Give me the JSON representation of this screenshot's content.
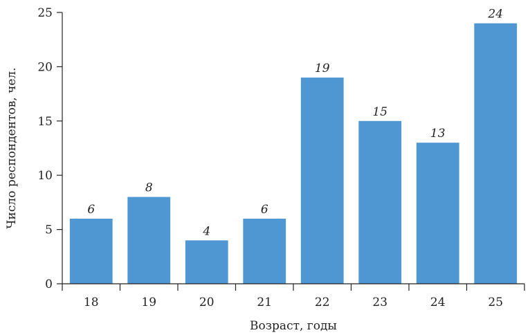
{
  "chart_data": {
    "type": "bar",
    "categories": [
      "18",
      "19",
      "20",
      "21",
      "22",
      "23",
      "24",
      "25"
    ],
    "values": [
      6,
      8,
      4,
      6,
      19,
      15,
      13,
      24
    ],
    "title": "",
    "xlabel": "Возраст, годы",
    "ylabel": "Число респондентов, чел.",
    "ylim": [
      0,
      25
    ],
    "yticks": [
      0,
      5,
      10,
      15,
      20,
      25
    ],
    "grid": false,
    "bar_color": "#4f97d2",
    "data_labels": true
  }
}
